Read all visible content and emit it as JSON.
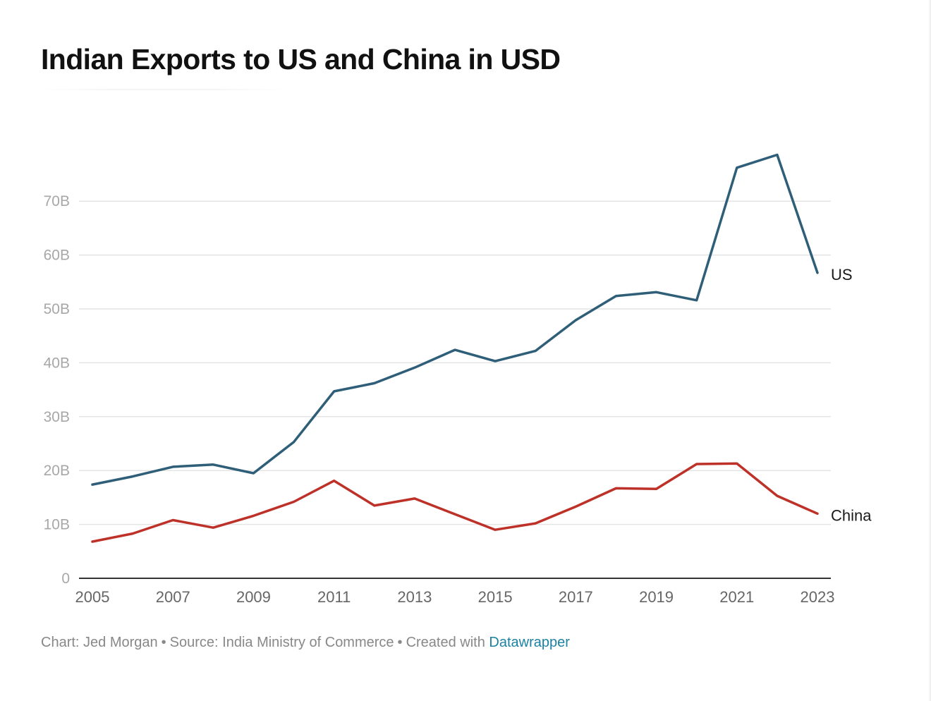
{
  "title": "Indian Exports to US and China in USD",
  "footer": {
    "chart_credit": "Chart: Jed Morgan",
    "separator": "•",
    "source": "Source: India Ministry of Commerce",
    "created_with": "Created with",
    "brand": "Datawrapper"
  },
  "colors": {
    "us": "#2f5f78",
    "china": "#bd3128",
    "grid": "#e4e4e4",
    "axis": "#333333",
    "tick_label": "#a7a7a7",
    "x_tick_label": "#666666",
    "brand_link": "#1d81a2"
  },
  "chart_data": {
    "type": "line",
    "x": [
      2005,
      2006,
      2007,
      2008,
      2009,
      2010,
      2011,
      2012,
      2013,
      2014,
      2015,
      2016,
      2017,
      2018,
      2019,
      2020,
      2021,
      2022,
      2023
    ],
    "x_ticks": [
      "2005",
      "2007",
      "2009",
      "2011",
      "2013",
      "2015",
      "2017",
      "2019",
      "2021",
      "2023"
    ],
    "y_ticks": [
      {
        "value": 0,
        "label": "0"
      },
      {
        "value": 10,
        "label": "10B"
      },
      {
        "value": 20,
        "label": "20B"
      },
      {
        "value": 30,
        "label": "30B"
      },
      {
        "value": 40,
        "label": "40B"
      },
      {
        "value": 50,
        "label": "50B"
      },
      {
        "value": 60,
        "label": "60B"
      },
      {
        "value": 70,
        "label": "70B"
      }
    ],
    "xlim": [
      2005,
      2023
    ],
    "ylim": [
      0,
      80
    ],
    "y_unit": "billion USD",
    "grid": true,
    "legend": "direct labels at line ends",
    "series": [
      {
        "name": "US",
        "color_key": "us",
        "values": [
          17.4,
          18.9,
          20.7,
          21.1,
          19.5,
          25.3,
          34.7,
          36.2,
          39.1,
          42.4,
          40.3,
          42.2,
          47.9,
          52.4,
          53.1,
          51.6,
          76.2,
          78.6,
          56.7
        ]
      },
      {
        "name": "China",
        "color_key": "china",
        "values": [
          6.8,
          8.3,
          10.8,
          9.4,
          11.6,
          14.2,
          18.1,
          13.5,
          14.8,
          11.9,
          9.0,
          10.2,
          13.3,
          16.7,
          16.6,
          21.2,
          21.3,
          15.3,
          12.0
        ]
      }
    ]
  }
}
